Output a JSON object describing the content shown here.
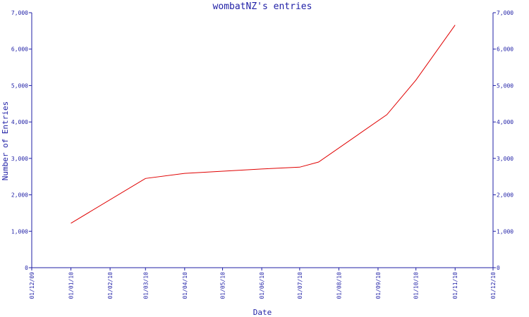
{
  "chart_data": {
    "type": "line",
    "title": "wombatNZ's entries",
    "xlabel": "Date",
    "ylabel": "Number of Entries",
    "x_tick_labels": [
      "01/12/09",
      "01/01/10",
      "01/02/10",
      "01/03/10",
      "01/04/10",
      "01/05/10",
      "01/06/10",
      "01/07/10",
      "01/08/10",
      "01/09/10",
      "01/10/10",
      "01/11/10",
      "01/12/10"
    ],
    "y_tick_labels": [
      "0",
      "1,000",
      "2,000",
      "3,000",
      "4,000",
      "5,000",
      "6,000",
      "7,000"
    ],
    "ylim": [
      0,
      7000
    ],
    "xlim": [
      "01/12/09",
      "01/12/10"
    ],
    "grid": false,
    "series": [
      {
        "color": "#e00000",
        "points": [
          {
            "x": "01/01/10",
            "y": 1220
          },
          {
            "x": "01/03/10",
            "y": 2450
          },
          {
            "x": "01/04/10",
            "y": 2590
          },
          {
            "x": "01/06/10",
            "y": 2710
          },
          {
            "x": "01/07/10",
            "y": 2760
          },
          {
            "x": "16/07/10",
            "y": 2900
          },
          {
            "x": "08/09/10",
            "y": 4200
          },
          {
            "x": "01/10/10",
            "y": 5150
          },
          {
            "x": "01/11/10",
            "y": 6660
          }
        ]
      }
    ]
  },
  "colors": {
    "axis": "#1f1fa6",
    "text": "#1f1fa6",
    "background": "#ffffff"
  }
}
